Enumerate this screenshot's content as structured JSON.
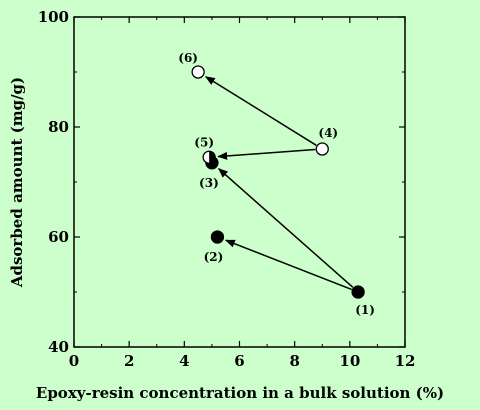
{
  "chart_data": {
    "type": "scatter",
    "xlabel": "Epoxy-resin concentration in a bulk solution (%)",
    "ylabel": "Adsorbed amount (mg/g)",
    "xlim": [
      0,
      12
    ],
    "ylim": [
      40,
      100
    ],
    "xticks": [
      "0",
      "2",
      "4",
      "6",
      "8",
      "10",
      "12"
    ],
    "yticks": [
      "40",
      "60",
      "80",
      "100"
    ],
    "grid": false,
    "points": [
      {
        "label": "(1)",
        "x": 10.3,
        "y": 50,
        "fill": "filled"
      },
      {
        "label": "(2)",
        "x": 5.2,
        "y": 60,
        "fill": "filled"
      },
      {
        "label": "(3)",
        "x": 5.0,
        "y": 73.5,
        "fill": "filled"
      },
      {
        "label": "(4)",
        "x": 9.0,
        "y": 76,
        "fill": "open"
      },
      {
        "label": "(5)",
        "x": 4.9,
        "y": 74.5,
        "fill": "half"
      },
      {
        "label": "(6)",
        "x": 4.5,
        "y": 90,
        "fill": "open"
      }
    ],
    "arrows": [
      {
        "from": "(1)",
        "to": "(2)"
      },
      {
        "from": "(1)",
        "to": "(3)"
      },
      {
        "from": "(4)",
        "to": "(5)"
      },
      {
        "from": "(4)",
        "to": "(6)"
      }
    ]
  }
}
